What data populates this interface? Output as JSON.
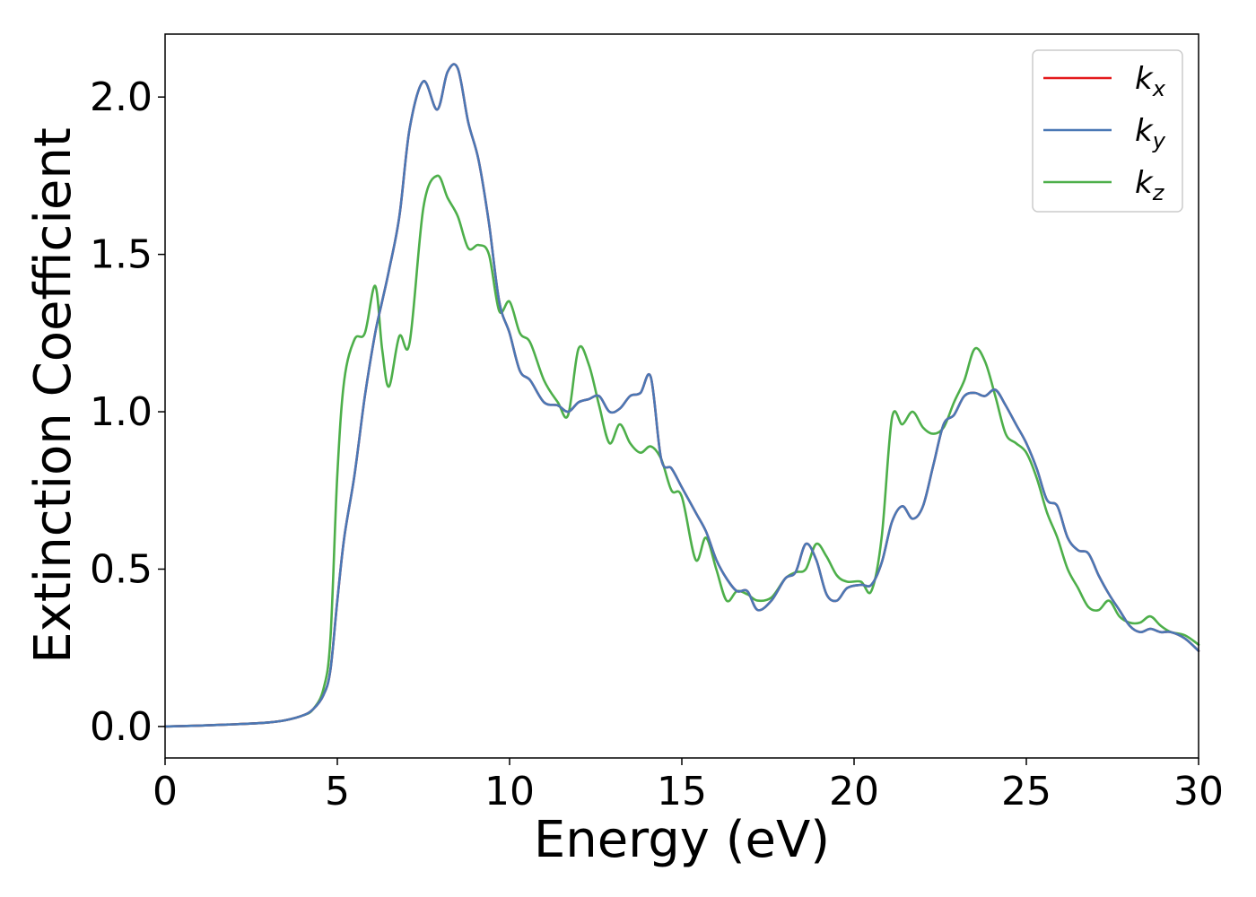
{
  "chart_data": {
    "type": "line",
    "title": "",
    "xlabel": "Energy (eV)",
    "ylabel": "Extinction Coefficient",
    "xlim": [
      0,
      30
    ],
    "ylim": [
      -0.1,
      2.2
    ],
    "xticks": [
      0,
      5,
      10,
      15,
      20,
      25,
      30
    ],
    "xtick_labels": [
      "0",
      "5",
      "10",
      "15",
      "20",
      "25",
      "30"
    ],
    "yticks": [
      0.0,
      0.5,
      1.0,
      1.5,
      2.0
    ],
    "ytick_labels": [
      "0.0",
      "0.5",
      "1.0",
      "1.5",
      "2.0"
    ],
    "grid": false,
    "legend_position": "top-right",
    "x": [
      0,
      1,
      2,
      3,
      3.5,
      4,
      4.3,
      4.6,
      4.8,
      5.0,
      5.2,
      5.5,
      5.8,
      6.1,
      6.3,
      6.5,
      6.8,
      7.1,
      7.5,
      7.9,
      8.2,
      8.5,
      8.8,
      9.1,
      9.4,
      9.7,
      10.0,
      10.3,
      10.6,
      11.0,
      11.4,
      11.7,
      12.0,
      12.3,
      12.6,
      12.9,
      13.2,
      13.5,
      13.8,
      14.1,
      14.4,
      14.7,
      15.0,
      15.4,
      15.7,
      16.0,
      16.3,
      16.6,
      16.9,
      17.2,
      17.6,
      18.0,
      18.3,
      18.6,
      18.9,
      19.2,
      19.5,
      19.8,
      20.2,
      20.5,
      20.8,
      21.1,
      21.4,
      21.7,
      22.0,
      22.3,
      22.6,
      22.9,
      23.2,
      23.5,
      23.8,
      24.1,
      24.4,
      24.7,
      25.0,
      25.3,
      25.6,
      25.9,
      26.2,
      26.5,
      26.8,
      27.1,
      27.4,
      27.7,
      28.0,
      28.3,
      28.6,
      28.9,
      29.2,
      29.6,
      30.0
    ],
    "series": [
      {
        "name": "k_x",
        "color": "#e41a1c",
        "values": [
          0.0,
          0.003,
          0.007,
          0.013,
          0.02,
          0.035,
          0.055,
          0.1,
          0.18,
          0.4,
          0.6,
          0.8,
          1.05,
          1.25,
          1.35,
          1.45,
          1.62,
          1.9,
          2.05,
          1.96,
          2.08,
          2.09,
          1.92,
          1.8,
          1.6,
          1.35,
          1.25,
          1.13,
          1.1,
          1.03,
          1.02,
          1.0,
          1.03,
          1.04,
          1.05,
          1.0,
          1.01,
          1.05,
          1.06,
          1.11,
          0.85,
          0.82,
          0.76,
          0.68,
          0.62,
          0.53,
          0.47,
          0.43,
          0.43,
          0.37,
          0.4,
          0.47,
          0.49,
          0.58,
          0.53,
          0.42,
          0.4,
          0.44,
          0.45,
          0.45,
          0.52,
          0.65,
          0.7,
          0.66,
          0.7,
          0.83,
          0.96,
          0.99,
          1.05,
          1.06,
          1.05,
          1.07,
          1.02,
          0.96,
          0.9,
          0.82,
          0.72,
          0.7,
          0.6,
          0.56,
          0.55,
          0.48,
          0.42,
          0.37,
          0.32,
          0.3,
          0.31,
          0.3,
          0.3,
          0.28,
          0.24
        ]
      },
      {
        "name": "k_y",
        "color": "#4a78b5",
        "values": [
          0.0,
          0.003,
          0.007,
          0.013,
          0.02,
          0.035,
          0.055,
          0.1,
          0.18,
          0.4,
          0.6,
          0.8,
          1.05,
          1.25,
          1.35,
          1.45,
          1.62,
          1.9,
          2.05,
          1.96,
          2.08,
          2.09,
          1.92,
          1.8,
          1.6,
          1.35,
          1.25,
          1.13,
          1.1,
          1.03,
          1.02,
          1.0,
          1.03,
          1.04,
          1.05,
          1.0,
          1.01,
          1.05,
          1.06,
          1.11,
          0.85,
          0.82,
          0.76,
          0.68,
          0.62,
          0.53,
          0.47,
          0.43,
          0.43,
          0.37,
          0.4,
          0.47,
          0.49,
          0.58,
          0.53,
          0.42,
          0.4,
          0.44,
          0.45,
          0.45,
          0.52,
          0.65,
          0.7,
          0.66,
          0.7,
          0.83,
          0.96,
          0.99,
          1.05,
          1.06,
          1.05,
          1.07,
          1.02,
          0.96,
          0.9,
          0.82,
          0.72,
          0.7,
          0.6,
          0.56,
          0.55,
          0.48,
          0.42,
          0.37,
          0.32,
          0.3,
          0.31,
          0.3,
          0.3,
          0.28,
          0.24
        ]
      },
      {
        "name": "k_z",
        "color": "#4daf4a",
        "values": [
          0.0,
          0.003,
          0.007,
          0.013,
          0.02,
          0.035,
          0.055,
          0.12,
          0.28,
          0.8,
          1.1,
          1.23,
          1.25,
          1.4,
          1.2,
          1.08,
          1.24,
          1.22,
          1.65,
          1.75,
          1.68,
          1.62,
          1.52,
          1.53,
          1.5,
          1.32,
          1.35,
          1.25,
          1.22,
          1.1,
          1.03,
          0.99,
          1.2,
          1.15,
          1.02,
          0.9,
          0.96,
          0.9,
          0.87,
          0.89,
          0.85,
          0.75,
          0.73,
          0.53,
          0.6,
          0.5,
          0.4,
          0.43,
          0.42,
          0.4,
          0.41,
          0.47,
          0.49,
          0.5,
          0.58,
          0.54,
          0.48,
          0.46,
          0.46,
          0.43,
          0.6,
          0.98,
          0.96,
          1.0,
          0.95,
          0.93,
          0.95,
          1.03,
          1.1,
          1.2,
          1.16,
          1.05,
          0.93,
          0.9,
          0.87,
          0.79,
          0.68,
          0.6,
          0.5,
          0.44,
          0.38,
          0.37,
          0.4,
          0.35,
          0.33,
          0.33,
          0.35,
          0.32,
          0.3,
          0.29,
          0.26
        ]
      }
    ],
    "legend": {
      "entries": [
        {
          "base": "k",
          "sub": "x"
        },
        {
          "base": "k",
          "sub": "y"
        },
        {
          "base": "k",
          "sub": "z"
        }
      ]
    }
  }
}
